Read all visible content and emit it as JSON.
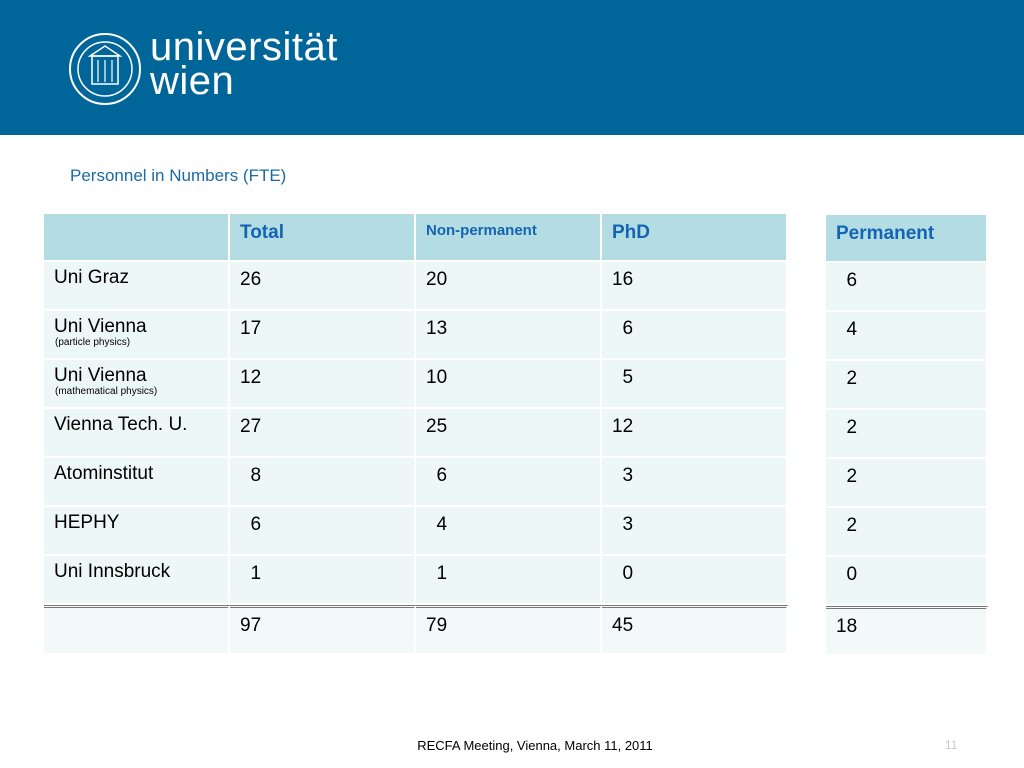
{
  "header": {
    "logo_line1": "universität",
    "logo_line2": "wien",
    "seal_icon": "university-seal-icon",
    "bg_color": "#006699"
  },
  "slide_title": "Personnel in Numbers (FTE)",
  "main_table": {
    "columns": [
      "",
      "Total",
      "Non-permanent",
      "PhD"
    ],
    "rows": [
      {
        "name": "Uni Graz",
        "sub": "",
        "total": "26",
        "nonperm": "20",
        "phd": "16"
      },
      {
        "name": "Uni Vienna",
        "sub": "(particle physics)",
        "total": "17",
        "nonperm": "13",
        "phd": "  6"
      },
      {
        "name": "Uni Vienna",
        "sub": "(mathematical physics)",
        "total": "12",
        "nonperm": "10",
        "phd": "  5"
      },
      {
        "name": "Vienna Tech. U.",
        "sub": "",
        "total": "27",
        "nonperm": "25",
        "phd": "12"
      },
      {
        "name": "Atominstitut",
        "sub": "",
        "total": "  8",
        "nonperm": "  6",
        "phd": "  3"
      },
      {
        "name": "HEPHY",
        "sub": "",
        "total": "  6",
        "nonperm": "  4",
        "phd": "  3"
      },
      {
        "name": "Uni Innsbruck",
        "sub": "",
        "total": "  1",
        "nonperm": "  1",
        "phd": "  0"
      }
    ],
    "totals": {
      "label": "",
      "total": "97",
      "nonperm": "79",
      "phd": "45"
    }
  },
  "permanent_table": {
    "header": "Permanent",
    "values": [
      "  6",
      "  4",
      "  2",
      "  2",
      "  2",
      "  2",
      "  0"
    ],
    "total": "18"
  },
  "footer": {
    "text": "RECFA Meeting, Vienna, March 11, 2011",
    "page": "11"
  }
}
